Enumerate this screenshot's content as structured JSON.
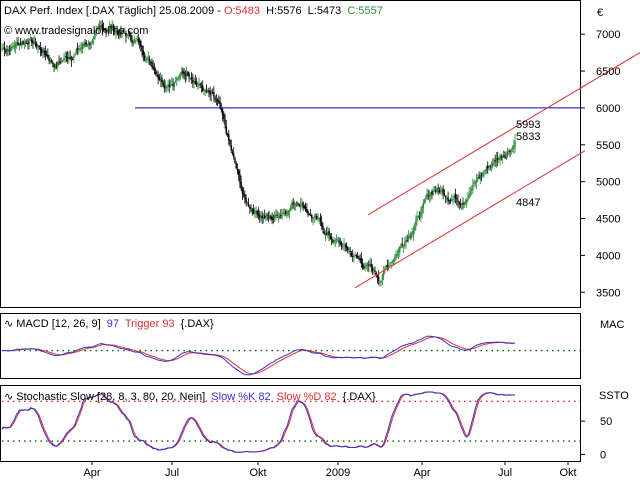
{
  "header": {
    "title": "DAX Perf. Index [.DAX  Täglich] 25.08.2009",
    "open_label": "O:5483",
    "high_label": "H:5576",
    "low_label": "L:5473",
    "close_label": "C:5557",
    "watermark": "www.tradesignalonline.com",
    "currency": "€"
  },
  "colors": {
    "up_candle": "#2e8b3a",
    "down_candle": "#000000",
    "horizontal_line": "#0000cc",
    "channel_lines": "#e03030",
    "macd_line": "#3333cc",
    "trigger_line": "#e03030",
    "signal_dots": "#006600",
    "stoch_k": "#3333cc",
    "stoch_d": "#e03030"
  },
  "chart_data": [
    {
      "type": "candlestick",
      "title": "DAX Perf. Index [.DAX  Täglich] 25.08.2009",
      "y_axis": {
        "ticks": [
          3500,
          4000,
          4500,
          5000,
          5500,
          6000,
          6500,
          7000
        ],
        "unit": "€",
        "range": [
          3300,
          7450
        ]
      },
      "x_axis": {
        "labels": [
          "Apr",
          "Jul",
          "Okt",
          "2009",
          "Apr",
          "Jul",
          "Okt"
        ]
      },
      "close_path_approx": [
        [
          "2008-01",
          6800
        ],
        [
          "2008-02",
          6950
        ],
        [
          "2008-03",
          6600
        ],
        [
          "2008-04",
          6850
        ],
        [
          "2008-05",
          7100
        ],
        [
          "2008-06",
          6900
        ],
        [
          "2008-07",
          6400
        ],
        [
          "2008-08",
          6500
        ],
        [
          "2008-09",
          6000
        ],
        [
          "2008-10",
          4700
        ],
        [
          "2008-11",
          4500
        ],
        [
          "2008-12",
          4800
        ],
        [
          "2009-01",
          4300
        ],
        [
          "2009-02",
          4000
        ],
        [
          "2009-03",
          3700
        ],
        [
          "2009-04",
          4300
        ],
        [
          "2009-05",
          4900
        ],
        [
          "2009-06",
          4800
        ],
        [
          "2009-07",
          5200
        ],
        [
          "2009-08",
          5557
        ]
      ],
      "horizontal_line": {
        "value": 6000
      },
      "annotations": [
        {
          "label": "5993",
          "value": 5993
        },
        {
          "label": "5833",
          "value": 5833
        },
        {
          "label": "4847",
          "value": 4847
        }
      ]
    },
    {
      "type": "line",
      "title": "MACD [12, 26, 9] 97 Trigger 93 {.DAX}",
      "label_prefix": "MACD [12, 26, 9]",
      "macd_value": "97",
      "trigger_label": "Trigger 93",
      "suffix": "{.DAX}",
      "axis_label": "MAC",
      "series": [
        {
          "name": "MACD",
          "value": 97
        },
        {
          "name": "Trigger",
          "value": 93
        }
      ]
    },
    {
      "type": "line",
      "title": "Stochastic Slow [28, 8, 3, 80, 20, Nein] Slow %K 82 Slow %D 82 {.DAX}",
      "label_prefix": "Stochastic Slow [28, 8, 3, 80, 20, Nein]",
      "k_label": "Slow %K 82",
      "d_label": "Slow %D 82",
      "suffix": "{.DAX}",
      "axis_label": "SSTO",
      "y_axis": {
        "ticks": [
          0,
          50
        ],
        "range": [
          -10,
          100
        ]
      },
      "levels": [
        80,
        20
      ],
      "series": [
        {
          "name": "Slow %K",
          "value": 82
        },
        {
          "name": "Slow %D",
          "value": 82
        }
      ]
    }
  ]
}
